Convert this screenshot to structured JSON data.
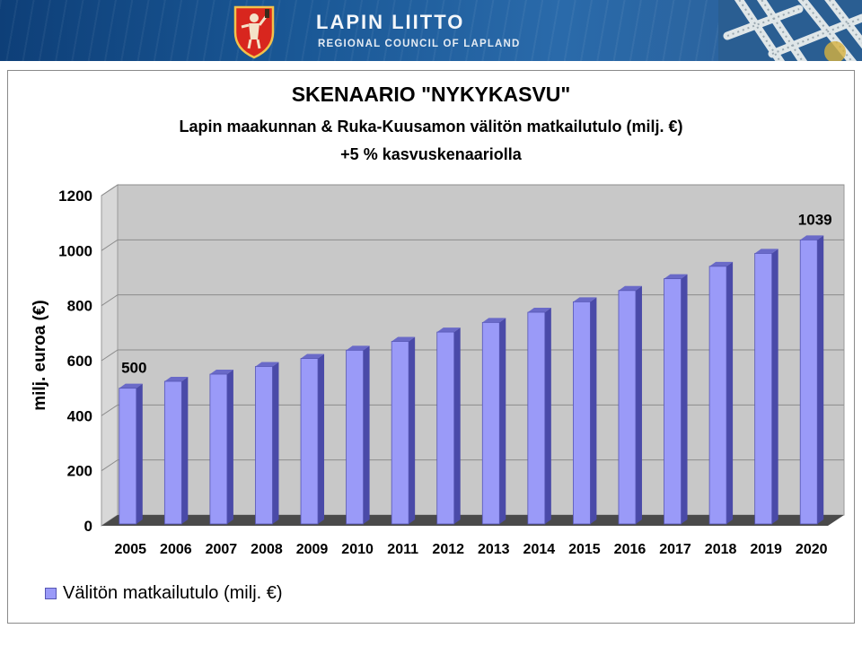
{
  "header": {
    "brand": "LAPIN LIITTO",
    "brand_sub": "REGIONAL COUNCIL OF LAPLAND",
    "crest_icon": "lapland-coat-of-arms-icon",
    "deco_icon": "ice-crystal-icon"
  },
  "colors": {
    "header_bg": "#1a5896",
    "bar_front": "#9a9af8",
    "bar_side": "#4a4aa8",
    "bar_top": "#6a6ac8",
    "plot_back": "#c8c8c8",
    "plot_floor": "#4a4a4a"
  },
  "chart_data": {
    "type": "bar",
    "title": "SKENAARIO \"NYKYKASVU\"",
    "subtitle_line1": "Lapin maakunnan & Ruka-Kuusamon välitön matkailutulo (milj. €)",
    "subtitle_line2": "+5 %  kasvuskenaariolla",
    "xlabel": "",
    "ylabel": "milj. euroa (€)",
    "ylim": [
      0,
      1200
    ],
    "yticks": [
      0,
      200,
      400,
      600,
      800,
      1000,
      1200
    ],
    "grid": true,
    "legend_position": "bottom-left",
    "categories": [
      "2005",
      "2006",
      "2007",
      "2008",
      "2009",
      "2010",
      "2011",
      "2012",
      "2013",
      "2014",
      "2015",
      "2016",
      "2017",
      "2018",
      "2019",
      "2020"
    ],
    "series": [
      {
        "name": "Välitön matkailutulo (milj. €)",
        "values": [
          500,
          525,
          551,
          579,
          608,
          638,
          670,
          704,
          739,
          776,
          814,
          855,
          898,
          943,
          990,
          1039
        ]
      }
    ],
    "data_labels": [
      {
        "index": 0,
        "text": "500"
      },
      {
        "index": 15,
        "text": "1039"
      }
    ]
  }
}
